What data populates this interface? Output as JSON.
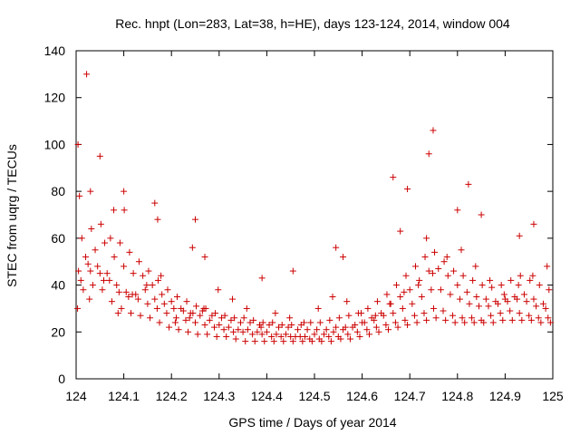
{
  "chart_data": {
    "type": "scatter",
    "title": "Rec. hnpt (Lon=283, Lat=38, h=HE), days 123-124, 2014, window 004",
    "xlabel": "GPS time / Days of year 2014",
    "ylabel": "STEC from uqrg / TECUs",
    "xlim": [
      124,
      125
    ],
    "ylim": [
      0,
      140
    ],
    "xticks": [
      "124",
      "124.1",
      "124.2",
      "124.3",
      "124.4",
      "124.5",
      "124.6",
      "124.7",
      "124.8",
      "124.9",
      "125"
    ],
    "yticks": [
      "0",
      "20",
      "40",
      "60",
      "80",
      "100",
      "120",
      "140"
    ],
    "grid": false,
    "legend": "none",
    "marker": "plus",
    "point_color": "#cc0000",
    "series": [
      {
        "x": [
          124.005,
          124.025,
          124.045,
          124.065,
          124.085,
          124.105,
          124.125,
          124.145,
          124.165,
          124.185,
          124.205,
          124.225,
          124.245,
          124.265,
          124.285,
          124.305,
          124.325,
          124.345,
          124.365,
          124.385,
          124.405,
          124.425,
          124.445,
          124.465,
          124.485,
          124.505,
          124.525,
          124.545,
          124.565,
          124.585,
          124.605,
          124.625,
          124.645,
          124.665,
          124.685,
          124.705,
          124.725,
          124.745,
          124.765,
          124.785,
          124.805,
          124.825,
          124.845,
          124.865,
          124.885,
          124.905,
          124.925,
          124.945,
          124.965,
          124.985,
          124.01,
          124.03,
          124.05,
          124.07,
          124.09,
          124.11,
          124.13,
          124.15,
          124.17,
          124.19,
          124.21,
          124.23,
          124.25,
          124.27,
          124.29,
          124.31,
          124.33,
          124.35,
          124.37,
          124.39,
          124.41,
          124.43,
          124.45,
          124.47,
          124.49,
          124.51,
          124.53,
          124.55,
          124.57,
          124.59,
          124.61,
          124.63,
          124.65,
          124.67,
          124.69,
          124.71,
          124.73,
          124.75,
          124.77,
          124.79,
          124.81,
          124.83,
          124.85,
          124.87,
          124.89,
          124.91,
          124.93,
          124.95,
          124.97,
          124.99,
          124.015,
          124.035,
          124.055,
          124.075,
          124.095,
          124.115,
          124.135,
          124.155,
          124.175,
          124.195,
          124.215,
          124.235,
          124.255,
          124.275,
          124.295,
          124.315,
          124.335,
          124.355,
          124.375,
          124.395,
          124.415,
          124.435,
          124.455,
          124.475,
          124.495,
          124.515,
          124.535,
          124.555,
          124.575,
          124.595,
          124.615,
          124.635,
          124.655,
          124.675,
          124.695,
          124.715,
          124.735,
          124.755,
          124.775,
          124.795,
          124.815,
          124.835,
          124.855,
          124.875,
          124.895,
          124.915,
          124.935,
          124.955,
          124.975,
          124.995,
          124.02,
          124.04,
          124.06,
          124.08,
          124.1,
          124.12,
          124.14,
          124.16,
          124.18,
          124.2,
          124.22,
          124.24,
          124.26,
          124.28,
          124.3,
          124.32,
          124.34,
          124.36,
          124.38,
          124.4,
          124.42,
          124.44,
          124.46,
          124.48,
          124.5,
          124.52,
          124.54,
          124.56,
          124.58,
          124.6,
          124.62,
          124.64,
          124.66,
          124.68,
          124.7,
          124.72,
          124.74,
          124.76,
          124.78,
          124.8,
          124.82,
          124.84,
          124.86,
          124.88,
          124.9,
          124.92,
          124.94,
          124.96,
          124.98,
          124.012,
          124.032,
          124.052,
          124.072,
          124.092,
          124.112,
          124.132,
          124.152,
          124.172,
          124.192,
          124.212,
          124.232,
          124.252,
          124.272,
          124.292,
          124.312,
          124.332,
          124.352,
          124.372,
          124.392,
          124.412,
          124.432,
          124.452,
          124.472,
          124.492,
          124.512,
          124.532,
          124.552,
          124.572,
          124.592,
          124.612,
          124.632,
          124.652,
          124.672,
          124.692,
          124.712,
          124.732,
          124.752,
          124.772,
          124.792,
          124.812,
          124.832,
          124.852,
          124.872,
          124.892,
          124.912,
          124.932,
          124.952,
          124.972,
          124.992,
          124.003,
          124.028,
          124.058,
          124.088,
          124.118,
          124.148,
          124.178,
          124.208,
          124.238,
          124.268,
          124.298,
          124.328,
          124.358,
          124.388,
          124.418,
          124.448,
          124.478,
          124.508,
          124.538,
          124.568,
          124.598,
          124.628,
          124.658,
          124.688,
          124.718,
          124.748,
          124.778,
          124.808,
          124.838,
          124.868,
          124.898,
          124.928,
          124.958,
          124.988,
          124.007,
          124.022,
          124.05,
          124.1,
          124.171,
          124.25,
          124.27,
          124.545,
          124.665,
          124.695,
          124.74,
          124.749,
          124.823,
          124.96,
          124.004,
          124.03,
          124.079,
          124.101,
          124.165,
          124.244,
          124.39,
          124.455,
          124.56,
          124.68,
          124.735,
          124.8,
          124.85,
          124.93
        ],
        "y": [
          46,
          49,
          48,
          45,
          40,
          37,
          36,
          38,
          34,
          32,
          30,
          29,
          28,
          29,
          27,
          26,
          25,
          24,
          24,
          23,
          23,
          22,
          22,
          21,
          21,
          21,
          21,
          22,
          22,
          23,
          24,
          25,
          27,
          28,
          30,
          32,
          35,
          38,
          38,
          36,
          34,
          32,
          31,
          31,
          32,
          33,
          34,
          33,
          31,
          30,
          42,
          46,
          45,
          42,
          37,
          35,
          34,
          32,
          30,
          28,
          26,
          25,
          24,
          23,
          22,
          21,
          20,
          20,
          19,
          19,
          18,
          18,
          18,
          18,
          17,
          17,
          18,
          18,
          19,
          20,
          21,
          22,
          23,
          24,
          25,
          27,
          28,
          30,
          29,
          27,
          26,
          26,
          25,
          27,
          28,
          29,
          28,
          27,
          26,
          26,
          38,
          40,
          38,
          33,
          30,
          28,
          27,
          26,
          24,
          22,
          21,
          20,
          19,
          19,
          18,
          18,
          17,
          16,
          16,
          16,
          16,
          16,
          16,
          16,
          16,
          16,
          16,
          17,
          17,
          18,
          19,
          20,
          21,
          22,
          23,
          24,
          25,
          26,
          25,
          24,
          24,
          24,
          24,
          24,
          25,
          25,
          25,
          25,
          24,
          24,
          52,
          55,
          58,
          52,
          48,
          45,
          44,
          40,
          36,
          33,
          30,
          28,
          27,
          25,
          23,
          22,
          21,
          21,
          20,
          20,
          19,
          19,
          18,
          18,
          19,
          19,
          20,
          21,
          22,
          24,
          26,
          28,
          32,
          35,
          38,
          42,
          46,
          47,
          44,
          40,
          37,
          35,
          34,
          33,
          34,
          35,
          36,
          34,
          32,
          60,
          64,
          66,
          60,
          58,
          54,
          50,
          46,
          42,
          38,
          35,
          33,
          31,
          30,
          28,
          27,
          26,
          26,
          25,
          24,
          24,
          23,
          23,
          23,
          24,
          24,
          25,
          26,
          27,
          28,
          30,
          33,
          36,
          40,
          44,
          48,
          52,
          54,
          50,
          46,
          44,
          42,
          40,
          39,
          40,
          42,
          44,
          42,
          40,
          38,
          30,
          34,
          42,
          28,
          36,
          40,
          44,
          24,
          26,
          30,
          38,
          34,
          30,
          22,
          28,
          26,
          24,
          30,
          35,
          33,
          28,
          27,
          32,
          37,
          40,
          45,
          52,
          55,
          48,
          42,
          36,
          40,
          44,
          48,
          78,
          130,
          95,
          80,
          68,
          68,
          52,
          56,
          86,
          81,
          96,
          106,
          83,
          66,
          100,
          80,
          72,
          72,
          75,
          56,
          43,
          46,
          52,
          63,
          60,
          72,
          70,
          61
        ],
        "note": ""
      }
    ]
  }
}
